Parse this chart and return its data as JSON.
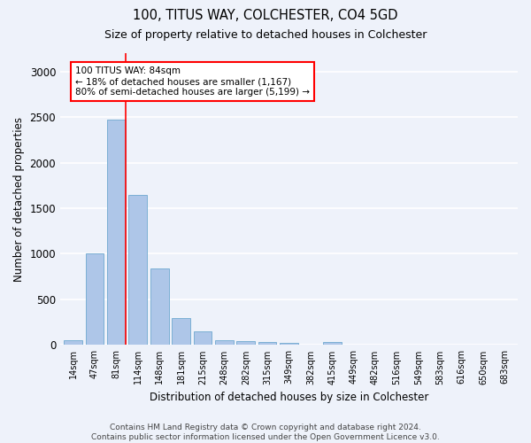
{
  "title1": "100, TITUS WAY, COLCHESTER, CO4 5GD",
  "title2": "Size of property relative to detached houses in Colchester",
  "xlabel": "Distribution of detached houses by size in Colchester",
  "ylabel": "Number of detached properties",
  "categories": [
    "14sqm",
    "47sqm",
    "81sqm",
    "114sqm",
    "148sqm",
    "181sqm",
    "215sqm",
    "248sqm",
    "282sqm",
    "315sqm",
    "349sqm",
    "382sqm",
    "415sqm",
    "449sqm",
    "482sqm",
    "516sqm",
    "549sqm",
    "583sqm",
    "616sqm",
    "650sqm",
    "683sqm"
  ],
  "values": [
    50,
    1000,
    2470,
    1650,
    840,
    300,
    150,
    50,
    40,
    30,
    20,
    5,
    30,
    2,
    0,
    0,
    0,
    0,
    0,
    0,
    0
  ],
  "bar_color": "#aec6e8",
  "bar_edgecolor": "#7bafd4",
  "annotation_text": "100 TITUS WAY: 84sqm\n← 18% of detached houses are smaller (1,167)\n80% of semi-detached houses are larger (5,199) →",
  "annotation_box_color": "white",
  "annotation_box_edgecolor": "red",
  "footer_text": "Contains HM Land Registry data © Crown copyright and database right 2024.\nContains public sector information licensed under the Open Government Licence v3.0.",
  "ylim": [
    0,
    3200
  ],
  "background_color": "#eef2fa",
  "grid_color": "white"
}
